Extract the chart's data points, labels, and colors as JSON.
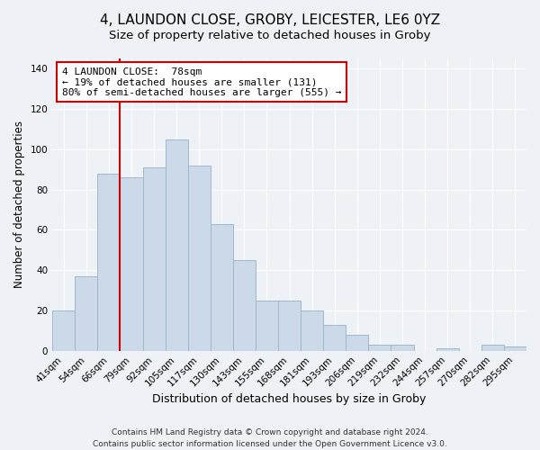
{
  "title1": "4, LAUNDON CLOSE, GROBY, LEICESTER, LE6 0YZ",
  "title2": "Size of property relative to detached houses in Groby",
  "xlabel": "Distribution of detached houses by size in Groby",
  "ylabel": "Number of detached properties",
  "categories": [
    "41sqm",
    "54sqm",
    "66sqm",
    "79sqm",
    "92sqm",
    "105sqm",
    "117sqm",
    "130sqm",
    "143sqm",
    "155sqm",
    "168sqm",
    "181sqm",
    "193sqm",
    "206sqm",
    "219sqm",
    "232sqm",
    "244sqm",
    "257sqm",
    "270sqm",
    "282sqm",
    "295sqm"
  ],
  "values": [
    20,
    37,
    88,
    86,
    91,
    105,
    92,
    63,
    45,
    25,
    25,
    20,
    13,
    8,
    3,
    3,
    0,
    1,
    0,
    3,
    2
  ],
  "bar_color": "#ccd9e8",
  "bar_edge_color": "#a0b8cc",
  "vline_color": "#cc0000",
  "annotation_title": "4 LAUNDON CLOSE:  78sqm",
  "annotation_line1": "← 19% of detached houses are smaller (131)",
  "annotation_line2": "80% of semi-detached houses are larger (555) →",
  "annotation_box_edge": "#cc0000",
  "ylim": [
    0,
    145
  ],
  "yticks": [
    0,
    20,
    40,
    60,
    80,
    100,
    120,
    140
  ],
  "footnote1": "Contains HM Land Registry data © Crown copyright and database right 2024.",
  "footnote2": "Contains public sector information licensed under the Open Government Licence v3.0.",
  "background_color": "#eef2f6",
  "plot_background": "#eef2f6",
  "title1_fontsize": 11,
  "title2_fontsize": 9.5,
  "xlabel_fontsize": 9,
  "ylabel_fontsize": 8.5,
  "tick_fontsize": 7.5,
  "footnote_fontsize": 6.5,
  "grid_color": "#ffffff"
}
